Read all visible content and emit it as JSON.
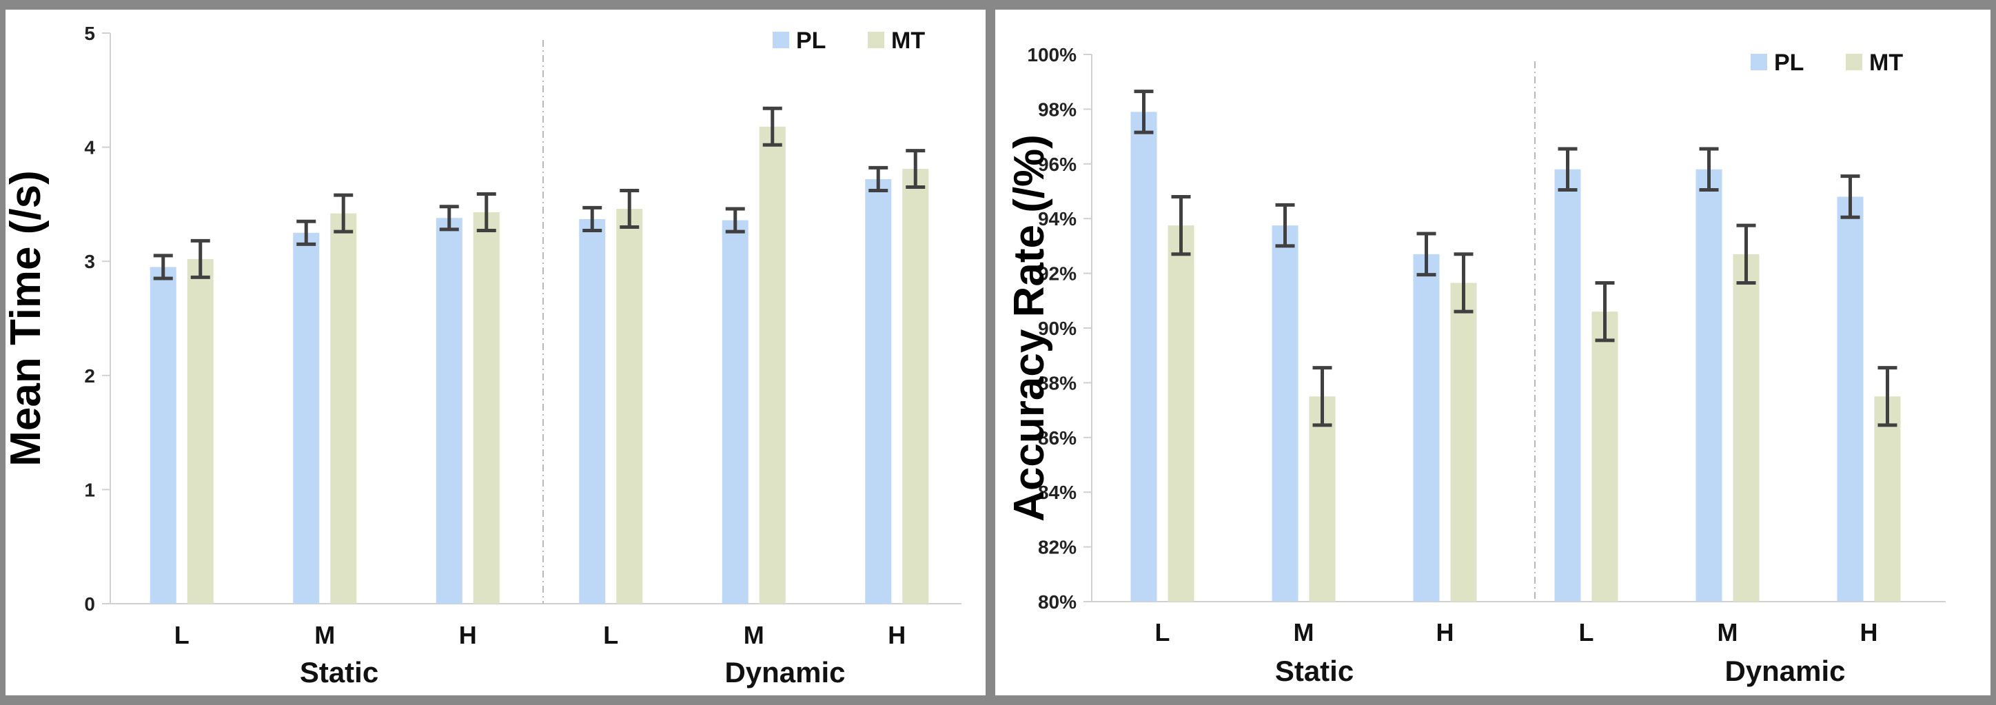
{
  "chart_data": [
    {
      "type": "bar",
      "ylabel": "Mean Time (/s)",
      "xlabel": "",
      "ylim": [
        0,
        5
      ],
      "yticks": [
        "0",
        "1",
        "2",
        "3",
        "4",
        "5"
      ],
      "groups": [
        "Static",
        "Dynamic"
      ],
      "categories": [
        "L",
        "M",
        "H",
        "L",
        "M",
        "H"
      ],
      "legend_placement": "top-right",
      "grid": false,
      "series": [
        {
          "name": "PL",
          "color": "#bdd7f6",
          "values": [
            2.95,
            3.25,
            3.38,
            3.37,
            3.36,
            3.72
          ],
          "errors": [
            0.1,
            0.1,
            0.1,
            0.1,
            0.1,
            0.1
          ]
        },
        {
          "name": "MT",
          "color": "#dde3c4",
          "values": [
            3.02,
            3.42,
            3.43,
            3.46,
            4.18,
            3.81
          ],
          "errors": [
            0.16,
            0.16,
            0.16,
            0.16,
            0.16,
            0.16
          ]
        }
      ]
    },
    {
      "type": "bar",
      "ylabel": "Accuracy Rate (/%)",
      "xlabel": "",
      "ylim": [
        80,
        100
      ],
      "yticks": [
        "80%",
        "82%",
        "84%",
        "86%",
        "88%",
        "90%",
        "92%",
        "94%",
        "96%",
        "98%",
        "100%"
      ],
      "groups": [
        "Static",
        "Dynamic"
      ],
      "categories": [
        "L",
        "M",
        "H",
        "L",
        "M",
        "H"
      ],
      "legend_placement": "top-right",
      "grid": false,
      "series": [
        {
          "name": "PL",
          "color": "#bdd7f6",
          "values": [
            97.9,
            93.75,
            92.7,
            95.8,
            95.8,
            94.8
          ],
          "errors": [
            0.75,
            0.75,
            0.75,
            0.75,
            0.75,
            0.75
          ]
        },
        {
          "name": "MT",
          "color": "#dde3c4",
          "values": [
            93.75,
            87.5,
            91.65,
            90.6,
            92.7,
            87.5
          ],
          "errors": [
            1.05,
            1.05,
            1.05,
            1.05,
            1.05,
            1.05
          ]
        }
      ]
    }
  ]
}
